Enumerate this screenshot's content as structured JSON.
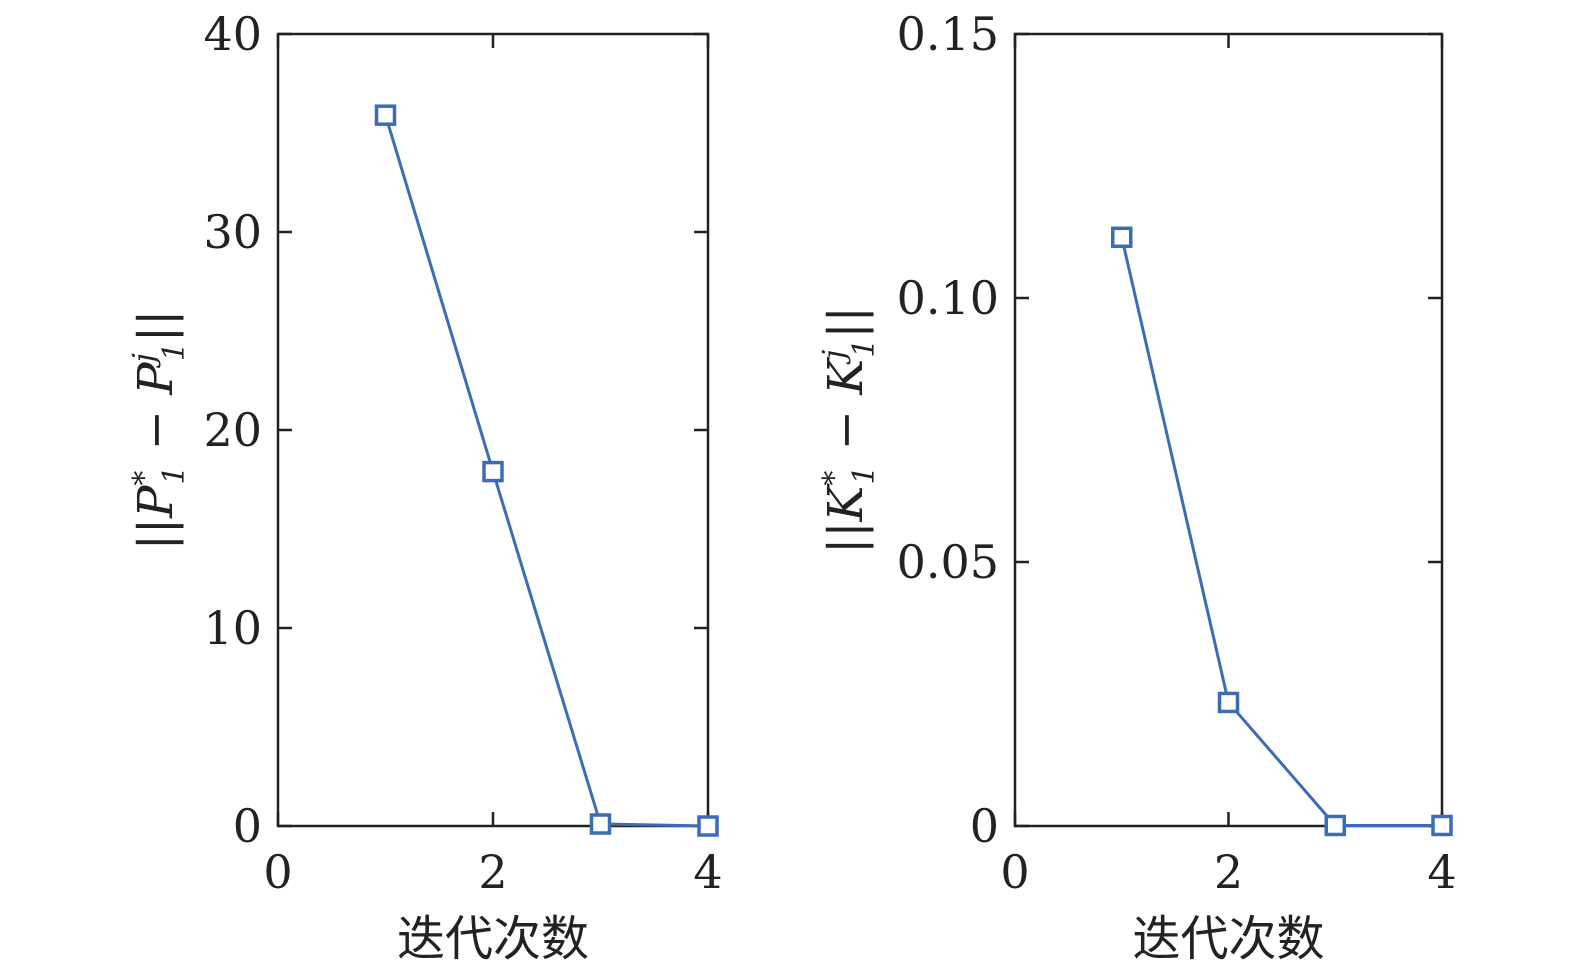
{
  "chart_data": [
    {
      "type": "line",
      "xlabel": "迭代次数",
      "ylabel": {
        "base": "||P",
        "sup1": "*",
        "sub1": "1",
        "mid": " − P",
        "sup2": "j",
        "sub2": "1",
        "end": "||"
      },
      "xlim": [
        0,
        4
      ],
      "ylim": [
        0,
        40
      ],
      "xticks": [
        0,
        2,
        4
      ],
      "yticks": [
        0,
        10,
        20,
        30,
        40
      ],
      "ytick_labels": [
        "0",
        "10",
        "20",
        "30",
        "40"
      ],
      "grid": false,
      "color": "#3c6db4",
      "marker": "square",
      "series": [
        {
          "x": [
            1,
            2,
            3,
            4
          ],
          "y": [
            35.9,
            17.9,
            0.1,
            0.0
          ]
        }
      ]
    },
    {
      "type": "line",
      "xlabel": "迭代次数",
      "ylabel": {
        "base": "||K",
        "sup1": "*",
        "sub1": "1",
        "mid": " − K",
        "sup2": "j",
        "sub2": "1",
        "end": "||"
      },
      "xlim": [
        0,
        4
      ],
      "ylim": [
        0,
        0.15
      ],
      "xticks": [
        0,
        2,
        4
      ],
      "yticks": [
        0,
        0.05,
        0.1,
        0.15
      ],
      "ytick_labels": [
        "0",
        "0.05",
        "0.10",
        "0.15"
      ],
      "grid": false,
      "color": "#3c6db4",
      "marker": "square",
      "series": [
        {
          "x": [
            1,
            2,
            3,
            4
          ],
          "y": [
            0.1115,
            0.0234,
            0.0001,
            0.0001
          ]
        }
      ]
    }
  ]
}
